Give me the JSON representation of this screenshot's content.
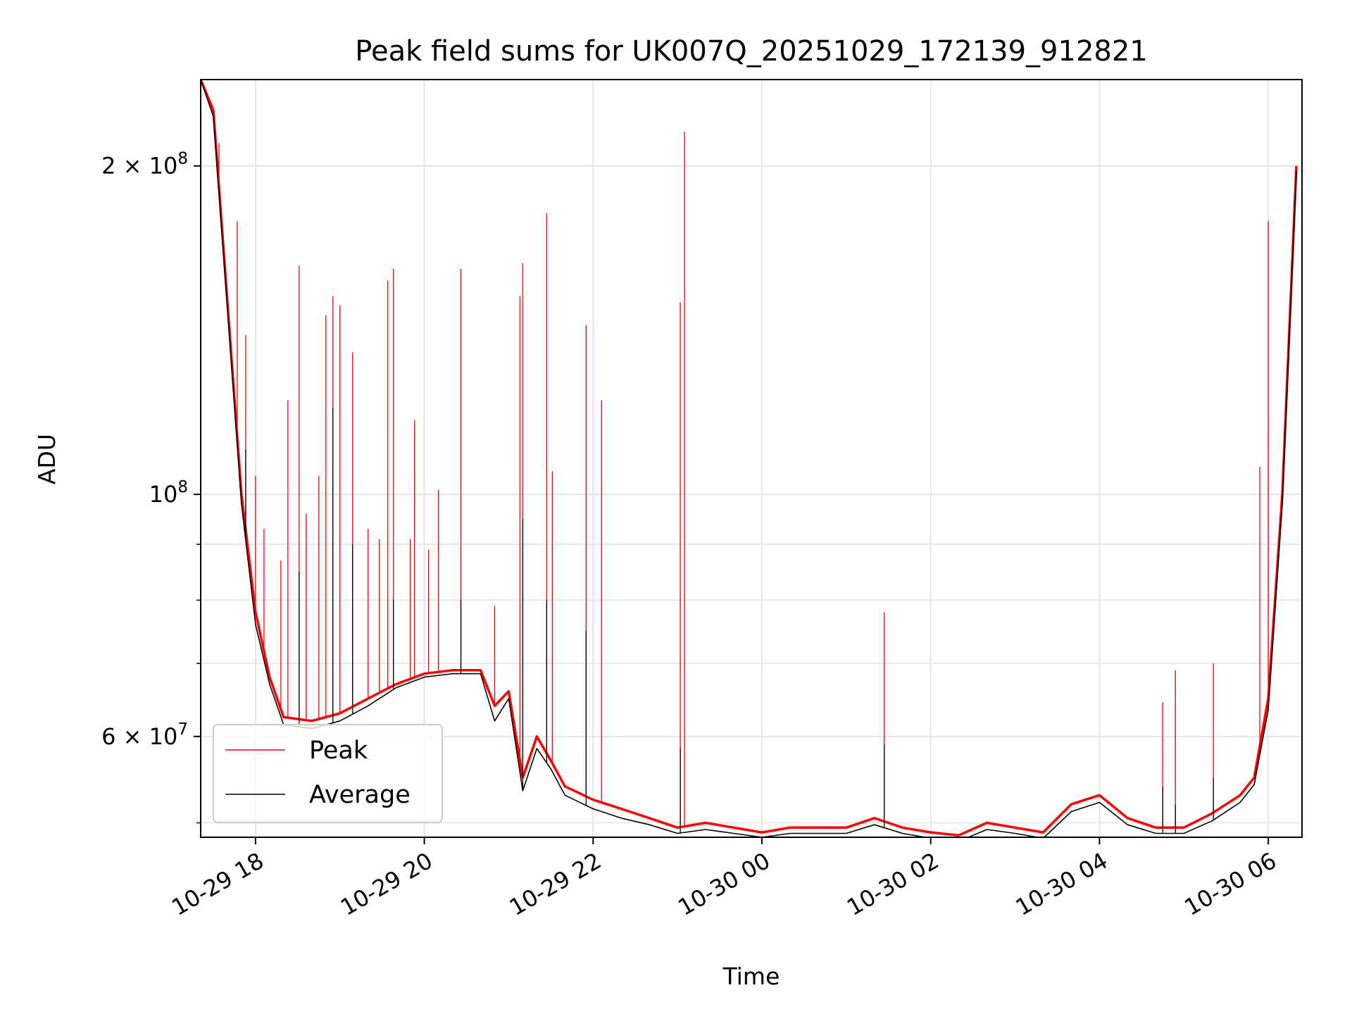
{
  "chart_data": {
    "type": "line",
    "title": "Peak field sums for UK007Q_20251029_172139_912821",
    "xlabel": "Time",
    "ylabel": "ADU",
    "yscale": "log",
    "xlim": [
      "2025-10-29 17:21",
      "2025-10-30 06:24"
    ],
    "ylim": [
      48500000,
      240000000
    ],
    "grid": true,
    "legend_location": "lower left",
    "x_ticks": [
      "10-29 18",
      "10-29 20",
      "10-29 22",
      "10-30 00",
      "10-30 02",
      "10-30 04",
      "10-30 06"
    ],
    "y_tick_labels": [
      {
        "value": 200000000,
        "base": "2",
        "exp": "8",
        "prefix": "2 × 10"
      },
      {
        "value": 100000000,
        "base": "",
        "exp": "8",
        "prefix": "10"
      },
      {
        "value": 60000000,
        "base": "6",
        "exp": "7",
        "prefix": "6 × 10"
      }
    ],
    "y_minor_ticks": [
      50000000,
      70000000,
      80000000,
      90000000
    ],
    "x_samples": [
      "2025-10-29 17:21",
      "2025-10-29 17:30",
      "2025-10-29 17:40",
      "2025-10-29 17:50",
      "2025-10-29 18:00",
      "2025-10-29 18:10",
      "2025-10-29 18:20",
      "2025-10-29 18:40",
      "2025-10-29 19:00",
      "2025-10-29 19:20",
      "2025-10-29 19:40",
      "2025-10-29 20:00",
      "2025-10-29 20:20",
      "2025-10-29 20:40",
      "2025-10-29 20:50",
      "2025-10-29 21:00",
      "2025-10-29 21:10",
      "2025-10-29 21:20",
      "2025-10-29 21:30",
      "2025-10-29 21:40",
      "2025-10-29 22:00",
      "2025-10-29 22:20",
      "2025-10-29 22:40",
      "2025-10-29 23:00",
      "2025-10-29 23:20",
      "2025-10-29 23:40",
      "2025-10-30 00:00",
      "2025-10-30 00:20",
      "2025-10-30 00:40",
      "2025-10-30 01:00",
      "2025-10-30 01:20",
      "2025-10-30 01:40",
      "2025-10-30 02:00",
      "2025-10-30 02:20",
      "2025-10-30 02:40",
      "2025-10-30 03:00",
      "2025-10-30 03:20",
      "2025-10-30 03:40",
      "2025-10-30 04:00",
      "2025-10-30 04:20",
      "2025-10-30 04:40",
      "2025-10-30 05:00",
      "2025-10-30 05:20",
      "2025-10-30 05:40",
      "2025-10-30 05:50",
      "2025-10-30 06:00",
      "2025-10-30 06:10",
      "2025-10-30 06:20"
    ],
    "series": [
      {
        "name": "Peak",
        "color": "#ff0000",
        "values": [
          240000000,
          225000000,
          150000000,
          100000000,
          78000000,
          68000000,
          62500000,
          62000000,
          63000000,
          65000000,
          67000000,
          68500000,
          69000000,
          69000000,
          64000000,
          66000000,
          55000000,
          60000000,
          57000000,
          54000000,
          52500000,
          51500000,
          50500000,
          49500000,
          50000000,
          49500000,
          49000000,
          49500000,
          49500000,
          49500000,
          50500000,
          49500000,
          49000000,
          48700000,
          50000000,
          49500000,
          49000000,
          52000000,
          53000000,
          50500000,
          49500000,
          49500000,
          51000000,
          53000000,
          55000000,
          65000000,
          100000000,
          200000000
        ],
        "spikes": [
          {
            "x": "2025-10-29 17:34",
            "y": 210000000
          },
          {
            "x": "2025-10-29 17:47",
            "y": 178000000
          },
          {
            "x": "2025-10-29 17:53",
            "y": 140000000
          },
          {
            "x": "2025-10-29 18:00",
            "y": 104000000
          },
          {
            "x": "2025-10-29 18:06",
            "y": 93000000
          },
          {
            "x": "2025-10-29 18:18",
            "y": 87000000
          },
          {
            "x": "2025-10-29 18:23",
            "y": 122000000
          },
          {
            "x": "2025-10-29 18:31",
            "y": 162000000
          },
          {
            "x": "2025-10-29 18:36",
            "y": 96000000
          },
          {
            "x": "2025-10-29 18:45",
            "y": 104000000
          },
          {
            "x": "2025-10-29 18:50",
            "y": 146000000
          },
          {
            "x": "2025-10-29 18:55",
            "y": 152000000
          },
          {
            "x": "2025-10-29 19:00",
            "y": 149000000
          },
          {
            "x": "2025-10-29 19:09",
            "y": 135000000
          },
          {
            "x": "2025-10-29 19:20",
            "y": 93000000
          },
          {
            "x": "2025-10-29 19:28",
            "y": 91000000
          },
          {
            "x": "2025-10-29 19:34",
            "y": 157000000
          },
          {
            "x": "2025-10-29 19:38",
            "y": 161000000
          },
          {
            "x": "2025-10-29 19:50",
            "y": 91000000
          },
          {
            "x": "2025-10-29 19:53",
            "y": 117000000
          },
          {
            "x": "2025-10-29 20:03",
            "y": 89000000
          },
          {
            "x": "2025-10-29 20:10",
            "y": 101000000
          },
          {
            "x": "2025-10-29 20:26",
            "y": 161000000
          },
          {
            "x": "2025-10-29 20:50",
            "y": 79000000
          },
          {
            "x": "2025-10-29 21:08",
            "y": 152000000
          },
          {
            "x": "2025-10-29 21:10",
            "y": 163000000
          },
          {
            "x": "2025-10-29 21:27",
            "y": 181000000
          },
          {
            "x": "2025-10-29 21:31",
            "y": 105000000
          },
          {
            "x": "2025-10-29 21:55",
            "y": 143000000
          },
          {
            "x": "2025-10-29 22:06",
            "y": 122000000
          },
          {
            "x": "2025-10-29 23:02",
            "y": 150000000
          },
          {
            "x": "2025-10-29 23:05",
            "y": 215000000
          },
          {
            "x": "2025-10-30 01:27",
            "y": 78000000
          },
          {
            "x": "2025-10-30 04:45",
            "y": 64500000
          },
          {
            "x": "2025-10-30 04:54",
            "y": 69000000
          },
          {
            "x": "2025-10-30 05:21",
            "y": 70000000
          },
          {
            "x": "2025-10-30 05:54",
            "y": 106000000
          },
          {
            "x": "2025-10-30 06:00",
            "y": 178000000
          }
        ]
      },
      {
        "name": "Average",
        "color": "#000000",
        "values": [
          240000000,
          222000000,
          148000000,
          98000000,
          76000000,
          67000000,
          61500000,
          61000000,
          62000000,
          64000000,
          66500000,
          68000000,
          68500000,
          68500000,
          62000000,
          65000000,
          53500000,
          58500000,
          56000000,
          53000000,
          51500000,
          50500000,
          49800000,
          48900000,
          49300000,
          48900000,
          48500000,
          48900000,
          48900000,
          48900000,
          49800000,
          48900000,
          48400000,
          48100000,
          49300000,
          48900000,
          48400000,
          51200000,
          52200000,
          49800000,
          48900000,
          48900000,
          50200000,
          52200000,
          54200000,
          63500000,
          98000000,
          198000000
        ],
        "spikes": [
          {
            "x": "2025-10-29 17:53",
            "y": 110000000
          },
          {
            "x": "2025-10-29 18:31",
            "y": 85000000
          },
          {
            "x": "2025-10-29 18:55",
            "y": 120000000
          },
          {
            "x": "2025-10-29 19:09",
            "y": 90000000
          },
          {
            "x": "2025-10-29 19:38",
            "y": 80000000
          },
          {
            "x": "2025-10-29 20:26",
            "y": 80000000
          },
          {
            "x": "2025-10-29 21:10",
            "y": 95000000
          },
          {
            "x": "2025-10-29 21:27",
            "y": 80000000
          },
          {
            "x": "2025-10-29 21:55",
            "y": 75000000
          },
          {
            "x": "2025-10-29 23:02",
            "y": 58500000
          },
          {
            "x": "2025-10-30 01:27",
            "y": 59000000
          },
          {
            "x": "2025-10-30 04:45",
            "y": 54000000
          },
          {
            "x": "2025-10-30 04:54",
            "y": 52000000
          },
          {
            "x": "2025-10-30 05:21",
            "y": 55000000
          }
        ]
      }
    ]
  }
}
